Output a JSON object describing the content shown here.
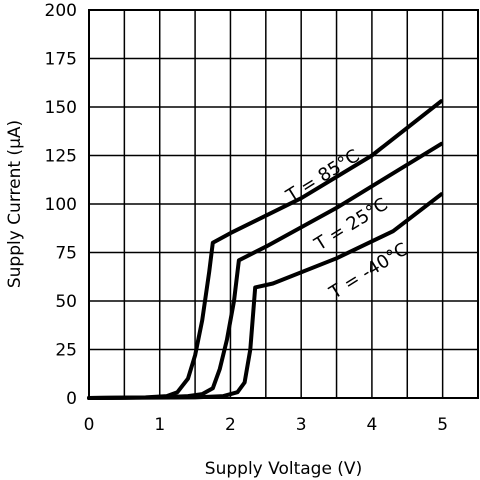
{
  "chart_data": {
    "type": "line",
    "xlabel": "Supply Voltage (V)",
    "ylabel": "Supply Current (μA)",
    "xlim": [
      0,
      5.5
    ],
    "ylim": [
      0,
      200
    ],
    "x_ticks": [
      0,
      1,
      2,
      3,
      4,
      5
    ],
    "y_ticks": [
      0,
      25,
      50,
      75,
      100,
      125,
      150,
      175,
      200
    ],
    "x_tick_labels": [
      "0",
      "1",
      "2",
      "3",
      "4",
      "5"
    ],
    "y_tick_labels": [
      "0",
      "25",
      "50",
      "75",
      "100",
      "125",
      "150",
      "175",
      "200"
    ],
    "x_grid_step": 0.5,
    "grid": true,
    "series": [
      {
        "name": "T = 85°C",
        "label_at": [
          3.35,
          112
        ],
        "points": [
          [
            0,
            0
          ],
          [
            0.8,
            0.3
          ],
          [
            1.1,
            1
          ],
          [
            1.25,
            3
          ],
          [
            1.4,
            10
          ],
          [
            1.5,
            22
          ],
          [
            1.6,
            40
          ],
          [
            1.7,
            65
          ],
          [
            1.75,
            80
          ],
          [
            2.0,
            85
          ],
          [
            3.0,
            103
          ],
          [
            4.0,
            125
          ],
          [
            4.98,
            153
          ]
        ]
      },
      {
        "name": "T = 25°C",
        "label_at": [
          3.75,
          87
        ],
        "points": [
          [
            0,
            0
          ],
          [
            1.0,
            0.3
          ],
          [
            1.4,
            1
          ],
          [
            1.6,
            2
          ],
          [
            1.75,
            5
          ],
          [
            1.85,
            15
          ],
          [
            1.95,
            30
          ],
          [
            2.05,
            50
          ],
          [
            2.12,
            71
          ],
          [
            2.5,
            78
          ],
          [
            3.5,
            98
          ],
          [
            4.98,
            131
          ]
        ]
      },
      {
        "name": "T = -40°C",
        "label_at": [
          4.0,
          63
        ],
        "points": [
          [
            0,
            0
          ],
          [
            1.5,
            0.3
          ],
          [
            1.9,
            1
          ],
          [
            2.1,
            3
          ],
          [
            2.2,
            8
          ],
          [
            2.28,
            25
          ],
          [
            2.35,
            57
          ],
          [
            2.6,
            59
          ],
          [
            3.5,
            72
          ],
          [
            4.3,
            86
          ],
          [
            4.98,
            105
          ]
        ]
      }
    ]
  }
}
